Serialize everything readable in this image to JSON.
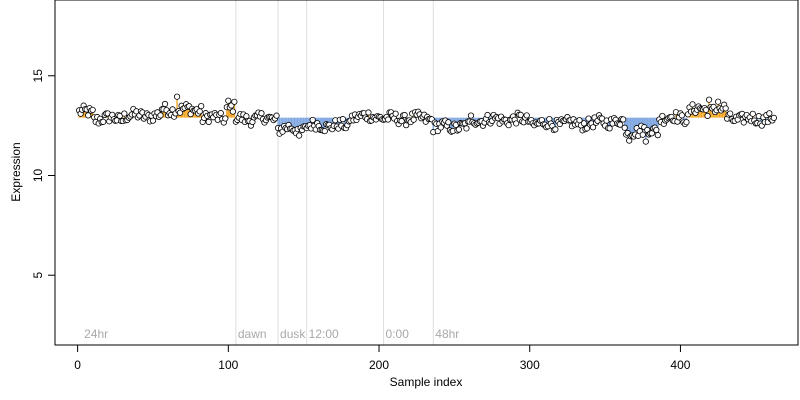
{
  "chart_data": {
    "type": "scatter",
    "title": "",
    "xlabel": "Sample index",
    "ylabel": "Expression",
    "xlim": [
      -15,
      478
    ],
    "ylim": [
      1.5,
      18.8
    ],
    "x_ticks": [
      0,
      100,
      200,
      300,
      400
    ],
    "y_ticks": [
      5,
      10,
      15
    ],
    "grid": false,
    "baseline": 12.9,
    "bar_colors": {
      "above": "#f5a623",
      "below": "#7ea6e0"
    },
    "point_style": {
      "fill": "#ffffff",
      "stroke": "#000000"
    },
    "annotations": [
      {
        "x": 3,
        "label": "24hr"
      },
      {
        "x": 105,
        "label": "dawn"
      },
      {
        "x": 133,
        "label": "dusk"
      },
      {
        "x": 152,
        "label": "12:00"
      },
      {
        "x": 203,
        "label": "0:00"
      },
      {
        "x": 236,
        "label": "48hr"
      }
    ],
    "segments": [
      {
        "x0": 1,
        "x1": 10,
        "y": 13.15
      },
      {
        "x0": 11,
        "x1": 30,
        "y": 12.85
      },
      {
        "x0": 31,
        "x1": 55,
        "y": 13.0
      },
      {
        "x0": 56,
        "x1": 82,
        "y": 13.3
      },
      {
        "x0": 83,
        "x1": 98,
        "y": 12.9
      },
      {
        "x0": 99,
        "x1": 104,
        "y": 13.4
      },
      {
        "x0": 105,
        "x1": 132,
        "y": 12.85
      },
      {
        "x0": 133,
        "x1": 151,
        "y": 12.35
      },
      {
        "x0": 152,
        "x1": 180,
        "y": 12.5
      },
      {
        "x0": 181,
        "x1": 202,
        "y": 12.95
      },
      {
        "x0": 203,
        "x1": 235,
        "y": 12.85
      },
      {
        "x0": 236,
        "x1": 260,
        "y": 12.45
      },
      {
        "x0": 261,
        "x1": 300,
        "y": 12.8
      },
      {
        "x0": 301,
        "x1": 345,
        "y": 12.6
      },
      {
        "x0": 346,
        "x1": 362,
        "y": 12.7
      },
      {
        "x0": 363,
        "x1": 385,
        "y": 12.25
      },
      {
        "x0": 386,
        "x1": 405,
        "y": 12.9
      },
      {
        "x0": 406,
        "x1": 430,
        "y": 13.3
      },
      {
        "x0": 431,
        "x1": 462,
        "y": 12.85
      }
    ],
    "n_points": 462,
    "spikes": [
      {
        "x": 66,
        "y": 13.95
      },
      {
        "x": 100,
        "y": 13.75
      },
      {
        "x": 147,
        "y": 12.0
      },
      {
        "x": 366,
        "y": 11.75
      },
      {
        "x": 377,
        "y": 11.7
      },
      {
        "x": 419,
        "y": 13.8
      },
      {
        "x": 425,
        "y": 13.7
      }
    ]
  }
}
